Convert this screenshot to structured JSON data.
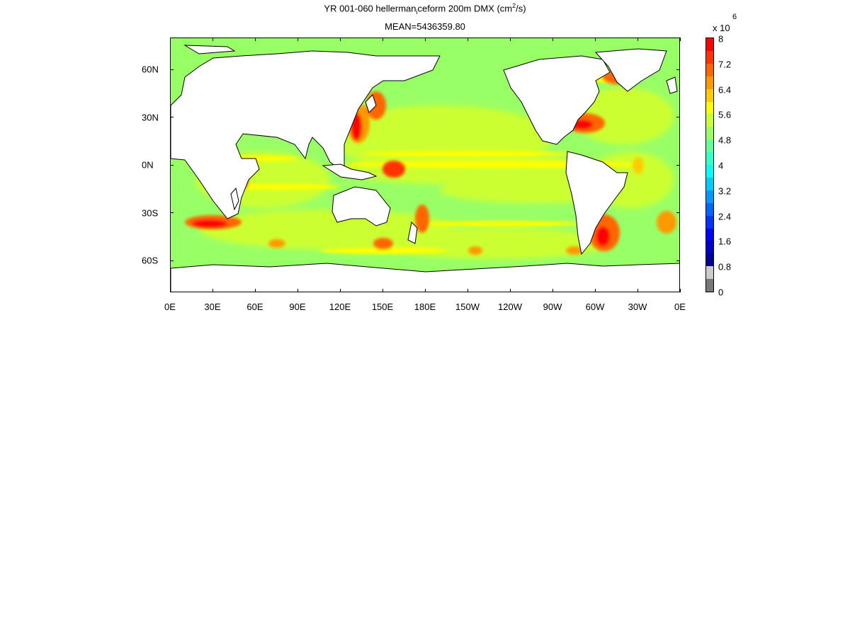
{
  "figure": {
    "title_prefix": "YR 001-060 hellerman",
    "title_sub": "i",
    "title_mid": "ceform 200m DMX (cm",
    "title_sup": "2",
    "title_suffix": "/s)",
    "mean_text": "MEAN=5436359.80"
  },
  "map": {
    "projection": "cylindrical equidistant",
    "lon_range": [
      0,
      360
    ],
    "lat_range": [
      -80,
      80
    ],
    "land_color": "#ffffff",
    "coast_color": "#000000",
    "background_ocean_color": "#99ff66",
    "x_ticks": [
      "0E",
      "30E",
      "60E",
      "90E",
      "120E",
      "150E",
      "180E",
      "150W",
      "120W",
      "90W",
      "60W",
      "30W",
      "0E"
    ],
    "y_ticks": [
      "60N",
      "30N",
      "0N",
      "30S",
      "60S"
    ]
  },
  "colorbar": {
    "multiplier_text": "x 10",
    "exponent_text": "6",
    "labels": [
      "8",
      "7.2",
      "6.4",
      "5.6",
      "4.8",
      "4",
      "3.2",
      "2.4",
      "1.6",
      "0.8",
      "0"
    ],
    "colors": [
      "#ff0000",
      "#ff3300",
      "#ff6600",
      "#ff9900",
      "#ffcc00",
      "#ffff00",
      "#ccff33",
      "#99ff66",
      "#66ff99",
      "#33ffcc",
      "#00ffff",
      "#00ccff",
      "#0099ff",
      "#0066ff",
      "#0033ff",
      "#0000ff",
      "#0000cc",
      "#000099",
      "#cccccc",
      "#777777"
    ]
  }
}
